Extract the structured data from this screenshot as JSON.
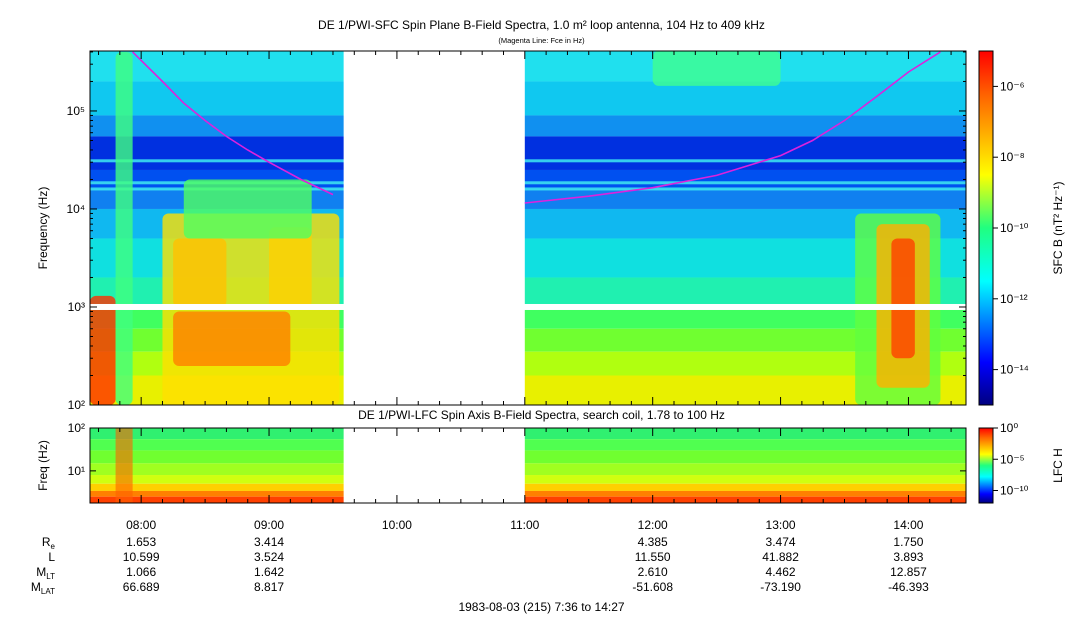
{
  "chart_data": [
    {
      "type": "heatmap",
      "title": "DE 1/PWI-SFC  Spin Plane B-Field Spectra, 1.0 m² loop antenna, 104 Hz to 409 kHz",
      "subtitle": "(Magenta Line: Fce in Hz)",
      "ylabel": "Frequency (Hz)",
      "yscale": "log",
      "ylim": [
        100,
        409000
      ],
      "yticks": [
        "10²",
        "10³",
        "10⁴",
        "10⁵"
      ],
      "xlim": [
        "07:36",
        "14:27"
      ],
      "colorbar": {
        "label": "SFC B (nT² Hz⁻¹)",
        "scale": "log",
        "range": [
          1e-15,
          1e-05
        ],
        "ticks": [
          "10⁻⁶",
          "10⁻⁸",
          "10⁻¹⁰",
          "10⁻¹²",
          "10⁻¹⁴"
        ]
      },
      "data_gap": [
        "09:35",
        "11:00"
      ],
      "series": [
        {
          "name": "Fce",
          "x": [
            "07:56",
            "08:10",
            "08:20",
            "08:30",
            "08:40",
            "08:50",
            "09:00",
            "09:15",
            "09:30",
            "11:00",
            "11:30",
            "12:00",
            "12:30",
            "13:00",
            "13:15",
            "13:30",
            "13:45",
            "14:00",
            "14:15"
          ],
          "y": [
            400000,
            200000,
            120000,
            80000,
            55000,
            40000,
            30000,
            20000,
            14000,
            11500,
            13500,
            16500,
            22000,
            35000,
            50000,
            80000,
            140000,
            250000,
            400000
          ]
        }
      ]
    },
    {
      "type": "heatmap",
      "title": "DE 1/PWI-LFC  Spin Axis B-Field Spectra, search coil, 1.78 to 100 Hz",
      "ylabel": "Freq (Hz)",
      "yscale": "log",
      "ylim": [
        1.78,
        100
      ],
      "yticks": [
        "10¹",
        "10²"
      ],
      "xlim": [
        "07:36",
        "14:27"
      ],
      "colorbar": {
        "label": "LFC H",
        "scale": "log",
        "range": [
          1e-12,
          1
        ],
        "ticks": [
          "10⁰",
          "10⁻⁵",
          "10⁻¹⁰"
        ]
      },
      "data_gap": [
        "09:35",
        "11:00"
      ]
    }
  ],
  "time_axis": {
    "ticks": [
      "08:00",
      "09:00",
      "10:00",
      "11:00",
      "12:00",
      "13:00",
      "14:00"
    ],
    "ephemeris_rows": [
      {
        "name": "Re",
        "label": "R",
        "sub": "e",
        "values": [
          "1.653",
          "3.414",
          "",
          "",
          "4.385",
          "3.474",
          "1.750"
        ]
      },
      {
        "name": "L",
        "label": "L",
        "sub": "",
        "values": [
          "10.599",
          "3.524",
          "",
          "",
          "11.550",
          "41.882",
          "3.893"
        ]
      },
      {
        "name": "MLT",
        "label": "M",
        "sub": "LT",
        "values": [
          "1.066",
          "1.642",
          "",
          "",
          "2.610",
          "4.462",
          "12.857"
        ]
      },
      {
        "name": "MLAT",
        "label": "M",
        "sub": "LAT",
        "values": [
          "66.689",
          "8.817",
          "",
          "",
          "-51.608",
          "-73.190",
          "-46.393"
        ]
      }
    ],
    "footer": "1983-08-03 (215) 7:36 to 14:27"
  },
  "colors": {
    "fce_line": "#dd22dd"
  }
}
